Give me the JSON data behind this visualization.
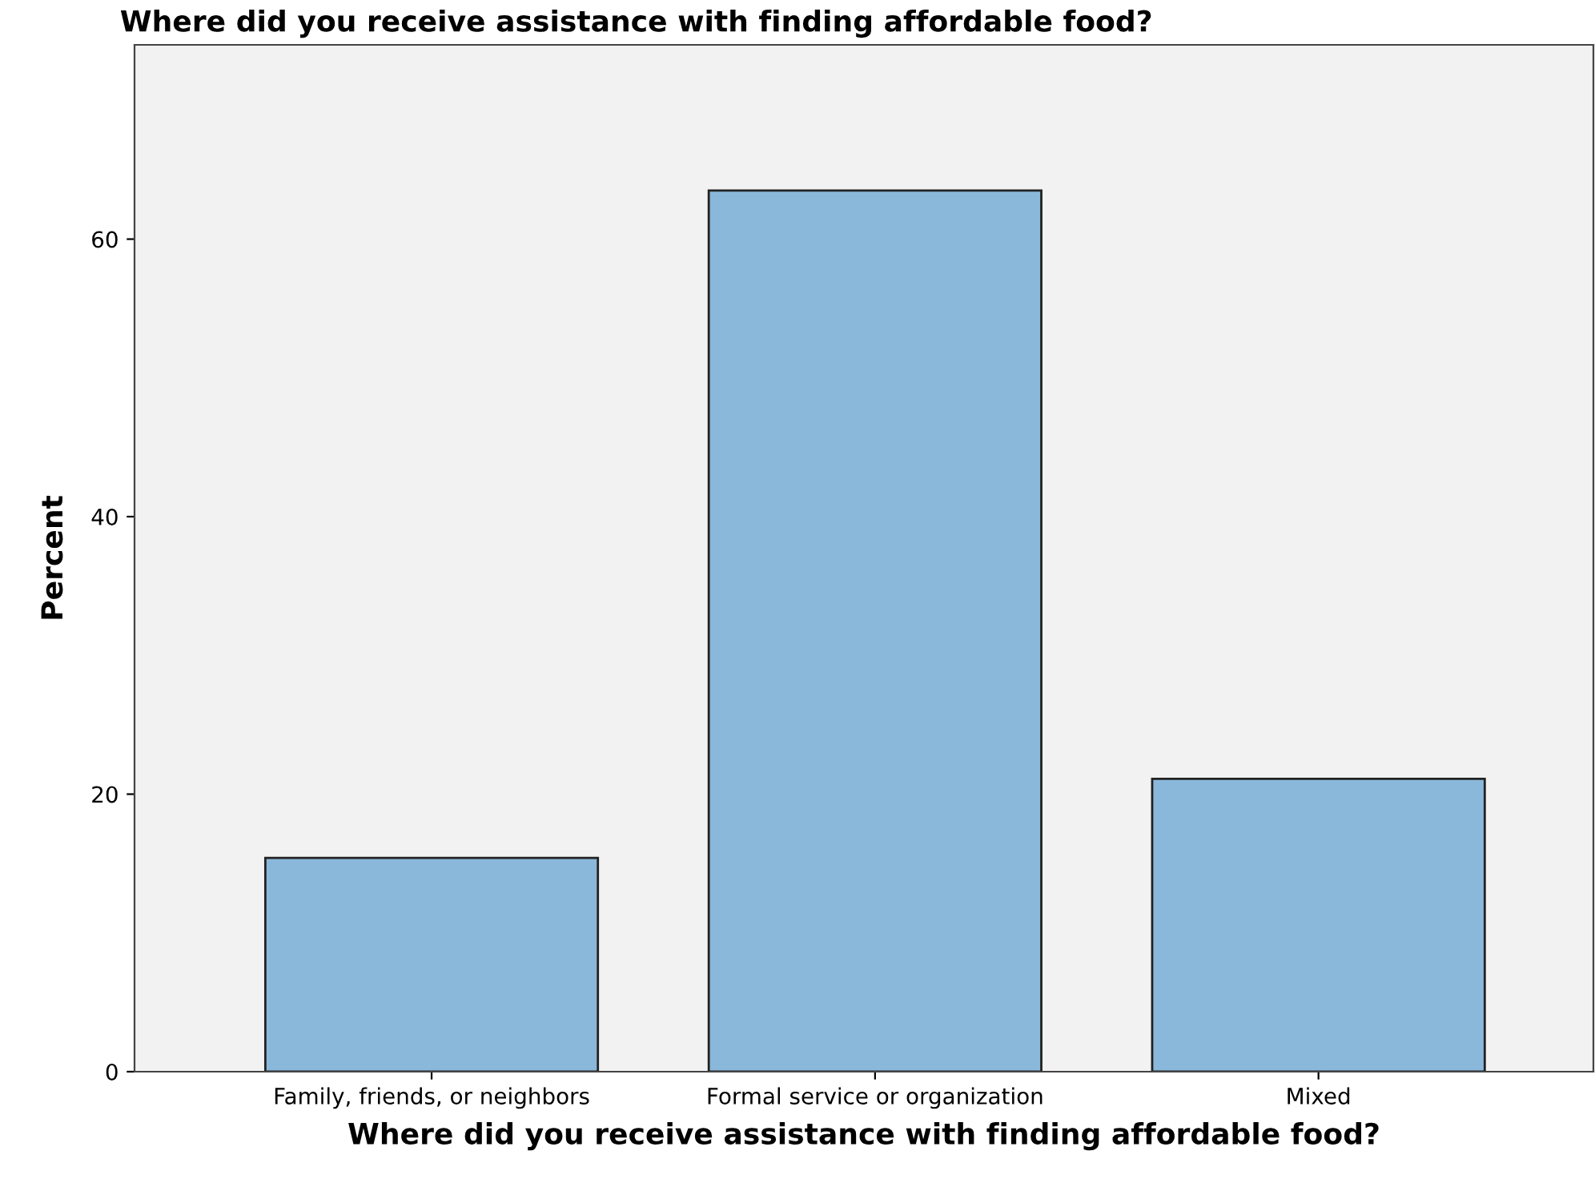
{
  "chart_data": {
    "type": "bar",
    "title": "Where did you receive assistance with finding affordable food?",
    "xlabel": "Where did you receive assistance with finding affordable food?",
    "ylabel": "Percent",
    "categories": [
      "Family, friends, or neighbors",
      "Formal service or organization",
      "Mixed"
    ],
    "values": [
      15.4,
      63.5,
      21.1
    ],
    "color": "#8ab8da",
    "ylim": [
      0,
      74
    ],
    "yticks": [
      0,
      20,
      40,
      60
    ],
    "grid": false,
    "legend": false
  }
}
